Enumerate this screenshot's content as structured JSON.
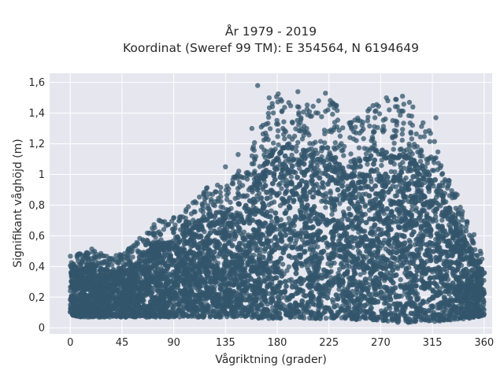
{
  "chart_data": {
    "type": "scatter",
    "title_line1": "År 1979 - 2019",
    "title_line2": "Koordinat (Sweref 99 TM): E 354564, N 6194649",
    "xlabel": "Vågriktning (grader)",
    "ylabel": "Signifikant våghöjd (m)",
    "xlim": [
      -18,
      367
    ],
    "ylim": [
      -0.04,
      1.66
    ],
    "x_ticks": [
      0,
      45,
      90,
      135,
      180,
      225,
      270,
      315,
      360
    ],
    "x_tick_labels": [
      "0",
      "45",
      "90",
      "135",
      "180",
      "225",
      "270",
      "315",
      "360"
    ],
    "y_ticks": [
      0,
      0.2,
      0.4,
      0.6,
      0.8,
      1.0,
      1.2,
      1.4,
      1.6
    ],
    "y_tick_labels": [
      "0",
      "0,2",
      "0,4",
      "0,6",
      "0,8",
      "1",
      "1,2",
      "1,4",
      "1,6"
    ],
    "grid": true,
    "legend": "none",
    "colors": {
      "marker": "#33556b",
      "plot_bg": "#e6e6ef",
      "grid": "#ffffff"
    },
    "envelope": {
      "x": [
        0,
        10,
        20,
        30,
        45,
        60,
        75,
        90,
        105,
        120,
        135,
        150,
        165,
        180,
        195,
        210,
        225,
        240,
        255,
        270,
        285,
        300,
        315,
        330,
        345,
        360
      ],
      "min": [
        0.08,
        0.07,
        0.07,
        0.07,
        0.07,
        0.07,
        0.07,
        0.07,
        0.07,
        0.07,
        0.07,
        0.07,
        0.06,
        0.06,
        0.06,
        0.06,
        0.06,
        0.06,
        0.05,
        0.05,
        0.03,
        0.03,
        0.04,
        0.05,
        0.06,
        0.08
      ],
      "max": [
        0.5,
        0.48,
        0.52,
        0.47,
        0.48,
        0.58,
        0.7,
        0.72,
        0.82,
        0.95,
        0.95,
        1.05,
        1.3,
        1.55,
        1.5,
        1.45,
        1.53,
        1.35,
        1.4,
        1.5,
        1.5,
        1.38,
        1.3,
        1.0,
        0.7,
        0.48
      ]
    },
    "outliers": [
      [
        163,
        1.58
      ],
      [
        173,
        1.5
      ],
      [
        198,
        1.54
      ],
      [
        222,
        1.53
      ],
      [
        210,
        1.38
      ],
      [
        208,
        1.41
      ],
      [
        216,
        1.48
      ],
      [
        275,
        1.5
      ],
      [
        283,
        1.49
      ],
      [
        289,
        1.51
      ],
      [
        295,
        1.47
      ],
      [
        297,
        1.38
      ],
      [
        298,
        1.44
      ],
      [
        318,
        1.37
      ],
      [
        158,
        1.3
      ],
      [
        185,
        1.3
      ],
      [
        232,
        1.31
      ],
      [
        265,
        1.37
      ],
      [
        252,
        1.35
      ],
      [
        184,
        1.41
      ],
      [
        146,
        1.13
      ],
      [
        135,
        1.05
      ]
    ]
  }
}
